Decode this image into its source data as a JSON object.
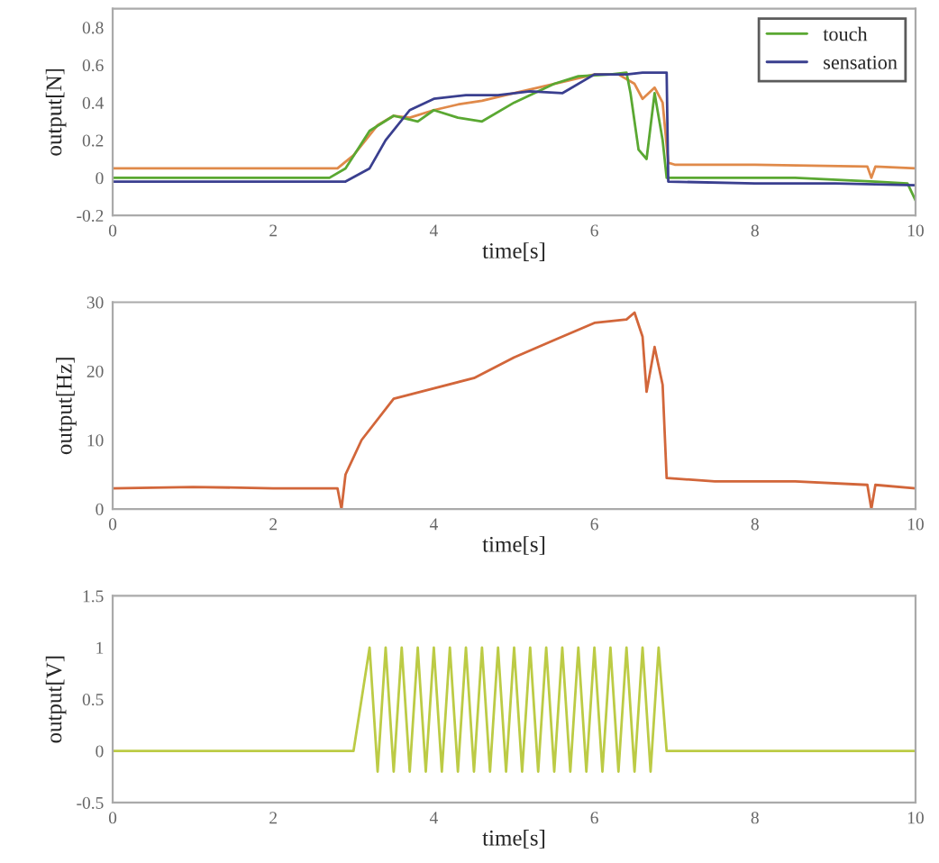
{
  "chart_data": [
    {
      "type": "line",
      "xlabel": "time[s]",
      "ylabel": "output[N]",
      "xlim": [
        0,
        10
      ],
      "xticks": [
        0,
        2,
        4,
        6,
        8,
        10
      ],
      "ylim": [
        -0.2,
        0.9
      ],
      "yticks": [
        -0.2,
        0,
        0.2,
        0.4,
        0.6,
        0.8
      ],
      "legend": "top right",
      "grid": false,
      "series": [
        {
          "color": "#e08a4a",
          "x": [
            0,
            1,
            2,
            2.8,
            3.0,
            3.3,
            3.5,
            3.7,
            4.0,
            4.3,
            4.6,
            5.0,
            5.5,
            6.0,
            6.3,
            6.5,
            6.6,
            6.75,
            6.85,
            6.92,
            7.0,
            8,
            9.4,
            9.45,
            9.5,
            10
          ],
          "values": [
            0.05,
            0.05,
            0.05,
            0.05,
            0.12,
            0.28,
            0.33,
            0.32,
            0.36,
            0.39,
            0.41,
            0.45,
            0.5,
            0.55,
            0.55,
            0.5,
            0.42,
            0.48,
            0.4,
            0.08,
            0.07,
            0.07,
            0.06,
            0.0,
            0.06,
            0.05
          ]
        },
        {
          "name": "touch",
          "color": "#5aa832",
          "x": [
            0,
            1,
            2,
            2.7,
            2.9,
            3.2,
            3.5,
            3.8,
            4.0,
            4.3,
            4.6,
            5.0,
            5.5,
            5.8,
            6.2,
            6.4,
            6.45,
            6.55,
            6.65,
            6.75,
            6.85,
            6.9,
            7.2,
            8.5,
            9.5,
            9.9,
            10
          ],
          "values": [
            0.0,
            0.0,
            0.0,
            0.0,
            0.05,
            0.25,
            0.33,
            0.3,
            0.36,
            0.32,
            0.3,
            0.4,
            0.5,
            0.54,
            0.55,
            0.56,
            0.45,
            0.15,
            0.1,
            0.45,
            0.2,
            0.0,
            0.0,
            0.0,
            -0.02,
            -0.03,
            -0.12
          ]
        },
        {
          "name": "sensation",
          "color": "#3a3f8f",
          "x": [
            0,
            1,
            2,
            2.9,
            3.2,
            3.4,
            3.7,
            4.0,
            4.4,
            4.8,
            5.2,
            5.6,
            6.0,
            6.4,
            6.6,
            6.9,
            6.92,
            8,
            9,
            10
          ],
          "values": [
            -0.02,
            -0.02,
            -0.02,
            -0.02,
            0.05,
            0.2,
            0.36,
            0.42,
            0.44,
            0.44,
            0.46,
            0.45,
            0.55,
            0.55,
            0.56,
            0.56,
            -0.02,
            -0.03,
            -0.03,
            -0.04
          ]
        }
      ]
    },
    {
      "type": "line",
      "xlabel": "time[s]",
      "ylabel": "output[Hz]",
      "xlim": [
        0,
        10
      ],
      "xticks": [
        0,
        2,
        4,
        6,
        8,
        10
      ],
      "ylim": [
        0,
        30
      ],
      "yticks": [
        0,
        10,
        20,
        30
      ],
      "grid": false,
      "series": [
        {
          "color": "#d2663a",
          "x": [
            0,
            1,
            2,
            2.8,
            2.85,
            2.9,
            3.1,
            3.5,
            4.0,
            4.5,
            5.0,
            5.5,
            6.0,
            6.4,
            6.5,
            6.6,
            6.65,
            6.75,
            6.85,
            6.9,
            7.5,
            8.5,
            9.4,
            9.45,
            9.5,
            10
          ],
          "values": [
            3,
            3.2,
            3,
            3,
            0,
            5,
            10,
            16,
            17.5,
            19,
            22,
            24.5,
            27,
            27.5,
            28.5,
            25,
            17,
            23.5,
            18,
            4.5,
            4,
            4,
            3.5,
            0,
            3.5,
            3
          ]
        }
      ]
    },
    {
      "type": "line",
      "xlabel": "time[s]",
      "ylabel": "output[V]",
      "xlim": [
        0,
        10
      ],
      "xticks": [
        0,
        2,
        4,
        6,
        8,
        10
      ],
      "ylim": [
        -0.5,
        1.5
      ],
      "yticks": [
        -0.5,
        0,
        0.5,
        1,
        1.5
      ],
      "grid": false,
      "series": [
        {
          "color": "#bccb45",
          "x": [
            0,
            0.5,
            1.0,
            1.5,
            2.0,
            2.5,
            3.0,
            3.2,
            3.3,
            3.4,
            3.5,
            3.6,
            3.7,
            3.8,
            3.9,
            4.0,
            4.1,
            4.2,
            4.3,
            4.4,
            4.5,
            4.6,
            4.7,
            4.8,
            4.9,
            5.0,
            5.1,
            5.2,
            5.3,
            5.4,
            5.5,
            5.6,
            5.7,
            5.8,
            5.9,
            6.0,
            6.1,
            6.2,
            6.3,
            6.4,
            6.5,
            6.6,
            6.7,
            6.8,
            6.9,
            7.5,
            8.0,
            8.5,
            9.0,
            9.5,
            10
          ],
          "values": [
            0,
            0,
            0,
            0,
            0,
            0,
            0,
            1,
            -0.2,
            1,
            -0.2,
            1,
            -0.2,
            1,
            -0.2,
            1,
            -0.2,
            1,
            -0.2,
            1,
            -0.2,
            1,
            -0.2,
            1,
            -0.2,
            1,
            -0.2,
            1,
            -0.2,
            1,
            -0.2,
            1,
            -0.2,
            1,
            -0.2,
            1,
            -0.2,
            1,
            -0.2,
            1,
            -0.2,
            1,
            -0.2,
            1,
            0,
            0,
            0,
            0,
            0,
            0,
            0
          ]
        }
      ]
    }
  ]
}
